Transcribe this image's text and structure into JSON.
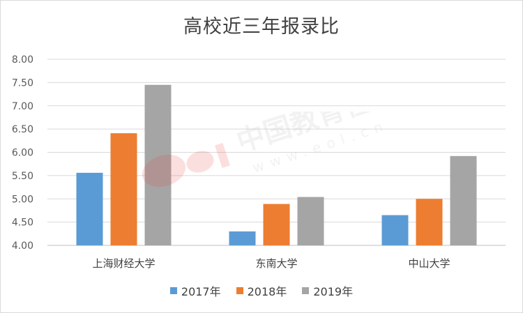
{
  "chart_data": {
    "type": "bar",
    "title": "高校近三年报录比",
    "categories": [
      "上海财经大学",
      "东南大学",
      "中山大学"
    ],
    "series": [
      {
        "name": "2017年",
        "color": "#5b9bd5",
        "values": [
          5.56,
          4.3,
          4.65
        ]
      },
      {
        "name": "2018年",
        "color": "#ed7d31",
        "values": [
          6.41,
          4.89,
          5.0
        ]
      },
      {
        "name": "2019年",
        "color": "#a5a5a5",
        "values": [
          7.45,
          5.04,
          5.92
        ]
      }
    ],
    "ylim": [
      4.0,
      8.0
    ],
    "yticks": [
      "4.00",
      "4.50",
      "5.00",
      "5.50",
      "6.00",
      "6.50",
      "7.00",
      "7.50",
      "8.00"
    ],
    "grid": true,
    "legend_position": "bottom"
  },
  "watermark": {
    "text": "中国教育在线",
    "url": "www.eol.cn",
    "logo": "eol",
    "colors": {
      "red": "#e8423a",
      "gray": "#b0b0b0"
    }
  }
}
